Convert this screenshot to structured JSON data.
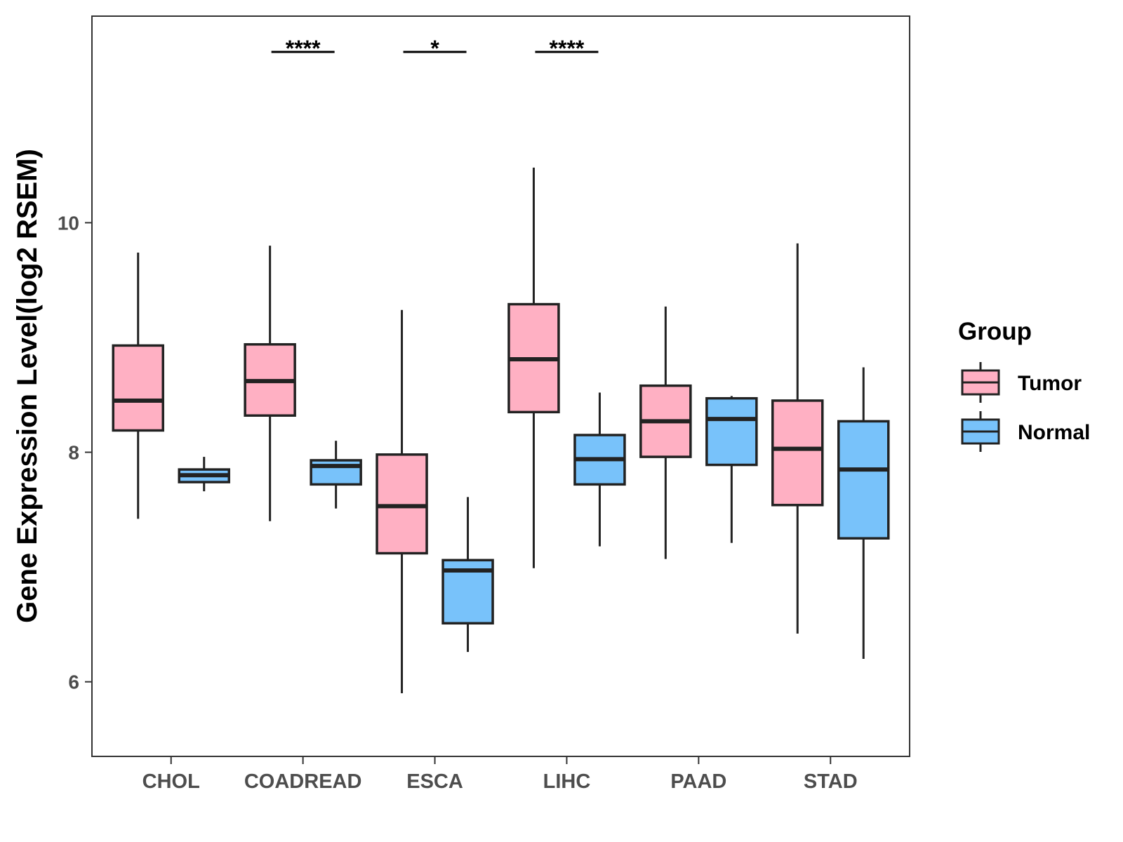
{
  "chart_data": {
    "type": "boxplot",
    "title": "",
    "xlabel": "",
    "ylabel": "Gene Expression Level(log2 RSEM)",
    "ylim": [
      5.35,
      11.8
    ],
    "yticks": [
      6,
      8,
      10
    ],
    "categories": [
      "CHOL",
      "COADREAD",
      "ESCA",
      "LIHC",
      "PAAD",
      "STAD"
    ],
    "legend": {
      "title": "Group",
      "position": "right",
      "entries": [
        {
          "name": "Tumor",
          "color": "#FFB0C3"
        },
        {
          "name": "Normal",
          "color": "#78C2FA"
        }
      ]
    },
    "series": [
      {
        "name": "Tumor",
        "color": "#FFB0C3",
        "boxes": [
          {
            "category": "CHOL",
            "min": 7.42,
            "q1": 8.19,
            "median": 8.45,
            "q3": 8.93,
            "max": 9.74
          },
          {
            "category": "COADREAD",
            "min": 7.4,
            "q1": 8.32,
            "median": 8.62,
            "q3": 8.94,
            "max": 9.8
          },
          {
            "category": "ESCA",
            "min": 5.9,
            "q1": 7.12,
            "median": 7.53,
            "q3": 7.98,
            "max": 9.24
          },
          {
            "category": "LIHC",
            "min": 6.99,
            "q1": 8.35,
            "median": 8.81,
            "q3": 9.29,
            "max": 10.48
          },
          {
            "category": "PAAD",
            "min": 7.07,
            "q1": 7.96,
            "median": 8.27,
            "q3": 8.58,
            "max": 9.27
          },
          {
            "category": "STAD",
            "min": 6.42,
            "q1": 7.54,
            "median": 8.03,
            "q3": 8.45,
            "max": 9.82
          }
        ]
      },
      {
        "name": "Normal",
        "color": "#78C2FA",
        "boxes": [
          {
            "category": "CHOL",
            "min": 7.66,
            "q1": 7.74,
            "median": 7.8,
            "q3": 7.85,
            "max": 7.96
          },
          {
            "category": "COADREAD",
            "min": 7.51,
            "q1": 7.72,
            "median": 7.88,
            "q3": 7.93,
            "max": 8.1
          },
          {
            "category": "ESCA",
            "min": 6.26,
            "q1": 6.51,
            "median": 6.97,
            "q3": 7.06,
            "max": 7.61
          },
          {
            "category": "LIHC",
            "min": 7.18,
            "q1": 7.72,
            "median": 7.94,
            "q3": 8.15,
            "max": 8.52
          },
          {
            "category": "PAAD",
            "min": 7.21,
            "q1": 7.89,
            "median": 8.29,
            "q3": 8.47,
            "max": 8.49
          },
          {
            "category": "STAD",
            "min": 6.2,
            "q1": 7.25,
            "median": 7.85,
            "q3": 8.27,
            "max": 8.74
          }
        ]
      }
    ],
    "annotations": [
      {
        "category": "COADREAD",
        "text": "****"
      },
      {
        "category": "ESCA",
        "text": "*"
      },
      {
        "category": "LIHC",
        "text": "****"
      }
    ]
  }
}
